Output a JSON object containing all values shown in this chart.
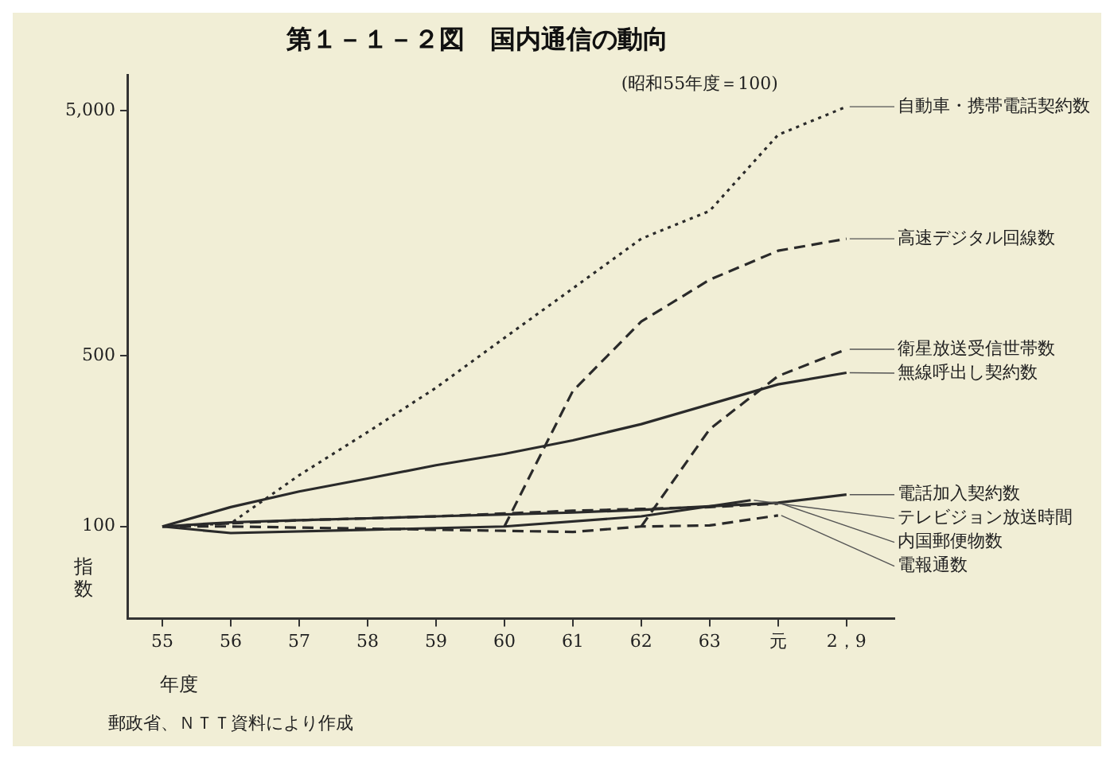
{
  "chart_data": {
    "type": "line",
    "title": "第１－１－２図　国内通信の動向",
    "xlabel": "年度",
    "ylabel": "指数",
    "annotations": [
      "(昭和55年度＝100)",
      "郵政省、ＮＴＴ資料により作成"
    ],
    "log": "y",
    "grid": false,
    "legend": false,
    "marker": "none",
    "xlim": [
      54.5,
      65.7
    ],
    "xticks": [
      55,
      56,
      57,
      58,
      59,
      60,
      61,
      62,
      63,
      {
        "value": 64,
        "label": "元"
      },
      {
        "value": 65,
        "label": "2，9"
      }
    ],
    "ylim": [
      42,
      7000
    ],
    "yticks": [
      100,
      500,
      {
        "value": 5000,
        "label": "5,000"
      }
    ],
    "series": [
      {
        "name": "自動車・携帯電話契約数",
        "color": "#2a2a2a",
        "line_style": "dotted",
        "x": [
          55,
          56,
          57,
          58,
          59,
          60,
          61,
          62,
          63,
          64,
          65
        ],
        "values": [
          100,
          103,
          162,
          243,
          369,
          590,
          940,
          1500,
          1950,
          3990,
          5200
        ]
      },
      {
        "name": "高速デジタル回線数",
        "color": "#2a2a2a",
        "line_style": "dashed",
        "x": [
          60,
          61,
          62,
          63,
          64,
          65
        ],
        "values": [
          100,
          358,
          688,
          1020,
          1340,
          1500
        ]
      },
      {
        "name": "衛星放送受信世帯数",
        "color": "#2a2a2a",
        "line_style": "dashed",
        "x": [
          62,
          63,
          64,
          65
        ],
        "values": [
          100,
          250,
          412,
          530
        ]
      },
      {
        "name": "無線呼出し契約数",
        "color": "#2a2a2a",
        "line_style": "solid",
        "x": [
          55,
          56,
          57,
          58,
          59,
          60,
          61,
          62,
          63,
          64,
          65
        ],
        "values": [
          100,
          120,
          139,
          157,
          178,
          198,
          225,
          262,
          316,
          381,
          425
        ]
      },
      {
        "name": "テレビジョン放送時間",
        "color": "#2a2a2a",
        "line_style": "solid",
        "x": [
          55,
          56,
          58,
          60,
          62,
          63.6
        ],
        "values": [
          100,
          94,
          97,
          100,
          110,
          128
        ]
      },
      {
        "name": "電話加入契約数",
        "color": "#2a2a2a",
        "line_style": "solid",
        "x": [
          55,
          56,
          57,
          58,
          59,
          60,
          61,
          62,
          63,
          64,
          65
        ],
        "values": [
          100,
          104,
          106,
          108,
          110,
          112,
          114,
          117,
          121,
          125,
          135
        ]
      },
      {
        "name": "内国郵便物数",
        "color": "#2a2a2a",
        "line_style": "dashed",
        "x": [
          55,
          56,
          57,
          58,
          59,
          60,
          61,
          62,
          63,
          64
        ],
        "values": [
          100,
          103,
          106,
          108,
          110,
          113,
          116,
          118,
          120,
          124
        ]
      },
      {
        "name": "電報通数",
        "color": "#2a2a2a",
        "line_style": "dashed",
        "x": [
          55,
          56,
          57,
          58,
          59,
          60,
          61,
          62,
          63,
          64
        ],
        "values": [
          100,
          100,
          99,
          98,
          97,
          96,
          95,
          100,
          101,
          111
        ]
      }
    ]
  }
}
